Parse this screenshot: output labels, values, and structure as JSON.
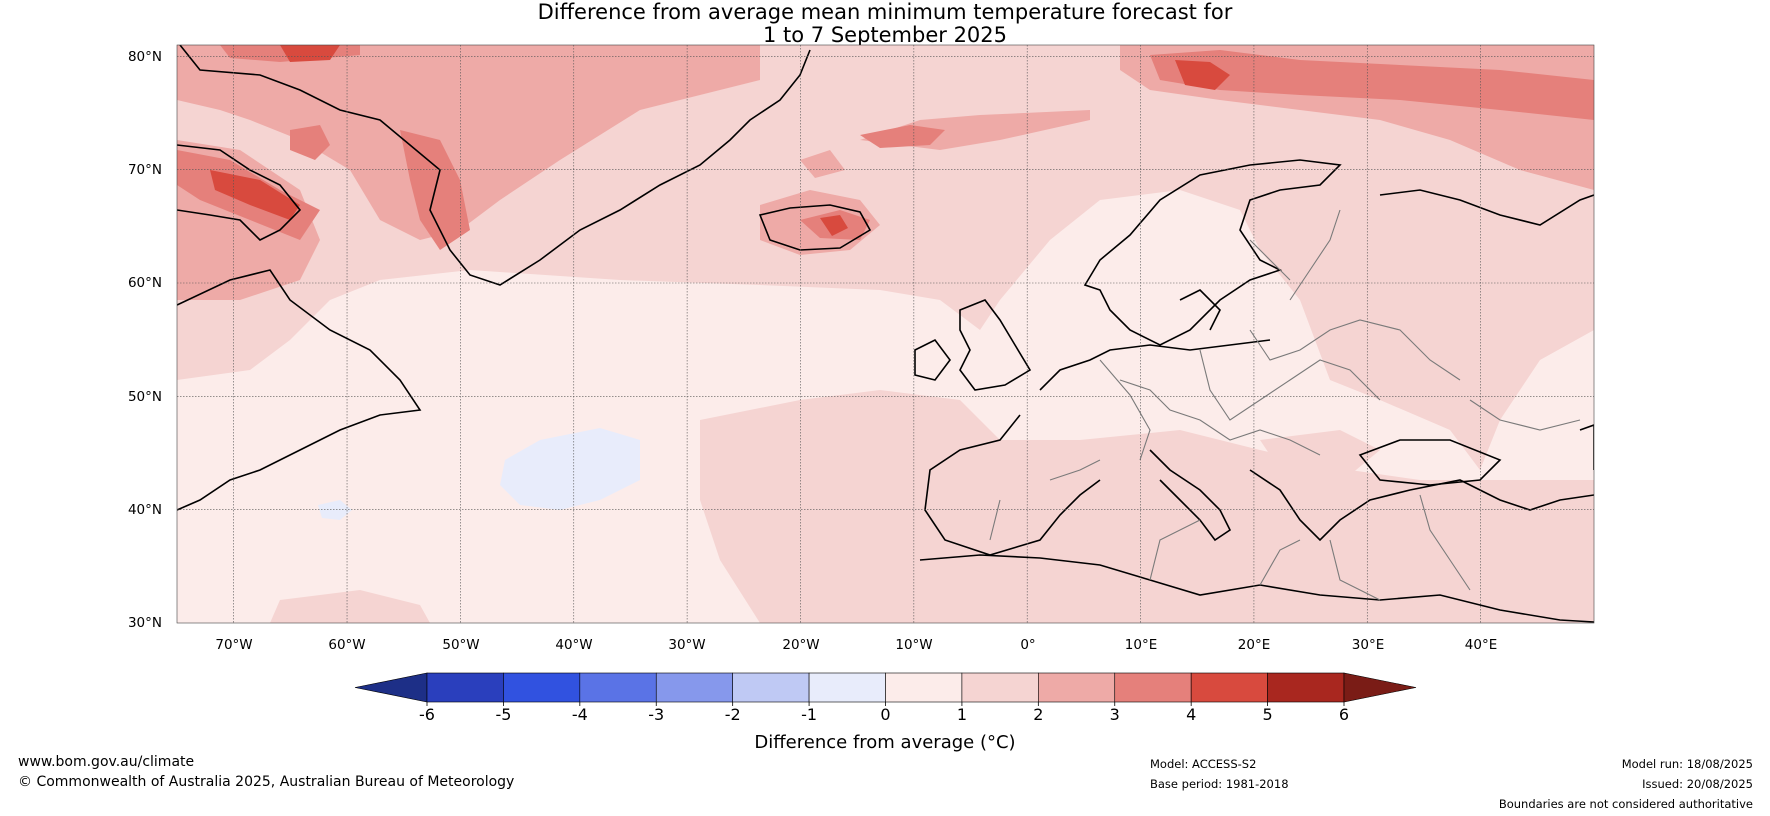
{
  "title": {
    "line1": "Difference from average mean minimum temperature forecast for",
    "line2": "1 to 7 September 2025"
  },
  "map": {
    "lat_labels": [
      "80°N",
      "70°N",
      "60°N",
      "50°N",
      "40°N",
      "30°N"
    ],
    "lon_labels": [
      "70°W",
      "60°W",
      "50°W",
      "40°W",
      "30°W",
      "20°W",
      "10°W",
      "0°",
      "10°E",
      "20°E",
      "30°E",
      "40°E"
    ],
    "lon_extent": [
      -75,
      50
    ],
    "lat_extent": [
      30,
      81
    ]
  },
  "colorbar": {
    "label": "Difference from average (°C)",
    "ticks": [
      "-6",
      "-5",
      "-4",
      "-3",
      "-2",
      "-1",
      "0",
      "1",
      "2",
      "3",
      "4",
      "5",
      "6"
    ],
    "colors": [
      "#1d2f87",
      "#2a3fbd",
      "#3152e0",
      "#5a73e6",
      "#8698ec",
      "#bfc9f4",
      "#e8ecfb",
      "#fcecea",
      "#f5d4d2",
      "#eeaaa7",
      "#e5807b",
      "#d84a3e",
      "#a9271f",
      "#7a1c16"
    ]
  },
  "footer": {
    "website": "www.bom.gov.au/climate",
    "copyright": "© Commonwealth of Australia 2025, Australian Bureau of Meteorology",
    "model": "Model: ACCESS-S2",
    "base_period": "Base period: 1981-2018",
    "model_run": "Model run: 18/08/2025",
    "issued": "Issued: 20/08/2025",
    "disclaimer": "Boundaries are not considered authoritative"
  }
}
